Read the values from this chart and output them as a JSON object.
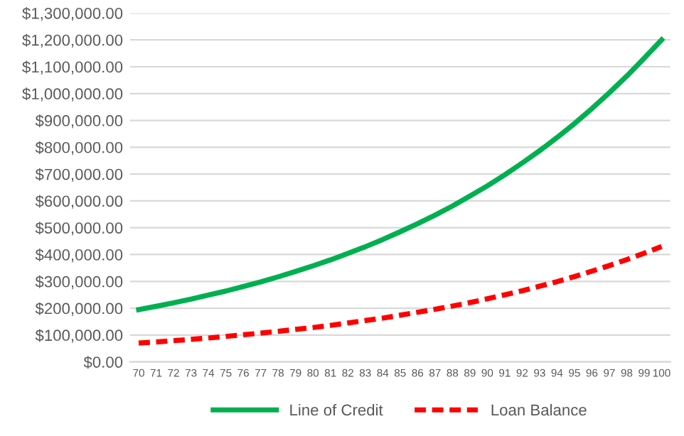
{
  "chart_data": {
    "type": "line",
    "categories": [
      "70",
      "71",
      "72",
      "73",
      "74",
      "75",
      "76",
      "77",
      "78",
      "79",
      "80",
      "81",
      "82",
      "83",
      "84",
      "85",
      "86",
      "87",
      "88",
      "89",
      "90",
      "91",
      "92",
      "93",
      "94",
      "95",
      "96",
      "97",
      "98",
      "99",
      "100"
    ],
    "series": [
      {
        "name": "Line of Credit",
        "color": "#00b050",
        "line_style": "solid",
        "values": [
          195000,
          207000,
          220000,
          234000,
          249000,
          264000,
          281000,
          298000,
          317000,
          337000,
          358000,
          380000,
          404000,
          429000,
          456000,
          485000,
          515000,
          547000,
          581000,
          618000,
          656000,
          697000,
          741000,
          787000,
          836000,
          888000,
          944000,
          1003000,
          1065000,
          1132000,
          1200000
        ]
      },
      {
        "name": "Loan Balance",
        "color": "#ff0000",
        "line_style": "dashed",
        "values": [
          70000,
          74000,
          79000,
          84000,
          89000,
          95000,
          101000,
          107000,
          114000,
          121000,
          128000,
          136000,
          145000,
          154000,
          163000,
          174000,
          185000,
          196000,
          208000,
          221000,
          235000,
          250000,
          265000,
          282000,
          299000,
          318000,
          338000,
          359000,
          381000,
          405000,
          430000
        ]
      }
    ],
    "ylim": [
      0,
      1300000
    ],
    "yticks": [
      {
        "value": 0,
        "label": "$0.00"
      },
      {
        "value": 100000,
        "label": "$100,000.00"
      },
      {
        "value": 200000,
        "label": "$200,000.00"
      },
      {
        "value": 300000,
        "label": "$300,000.00"
      },
      {
        "value": 400000,
        "label": "$400,000.00"
      },
      {
        "value": 500000,
        "label": "$500,000.00"
      },
      {
        "value": 600000,
        "label": "$600,000.00"
      },
      {
        "value": 700000,
        "label": "$700,000.00"
      },
      {
        "value": 800000,
        "label": "$800,000.00"
      },
      {
        "value": 900000,
        "label": "$900,000.00"
      },
      {
        "value": 1000000,
        "label": "$1,000,000.00"
      },
      {
        "value": 1100000,
        "label": "$1,100,000.00"
      },
      {
        "value": 1200000,
        "label": "$1,200,000.00"
      },
      {
        "value": 1300000,
        "label": "$1,300,000.00"
      }
    ],
    "grid": "y",
    "legend": "bottom",
    "marker": "none"
  }
}
